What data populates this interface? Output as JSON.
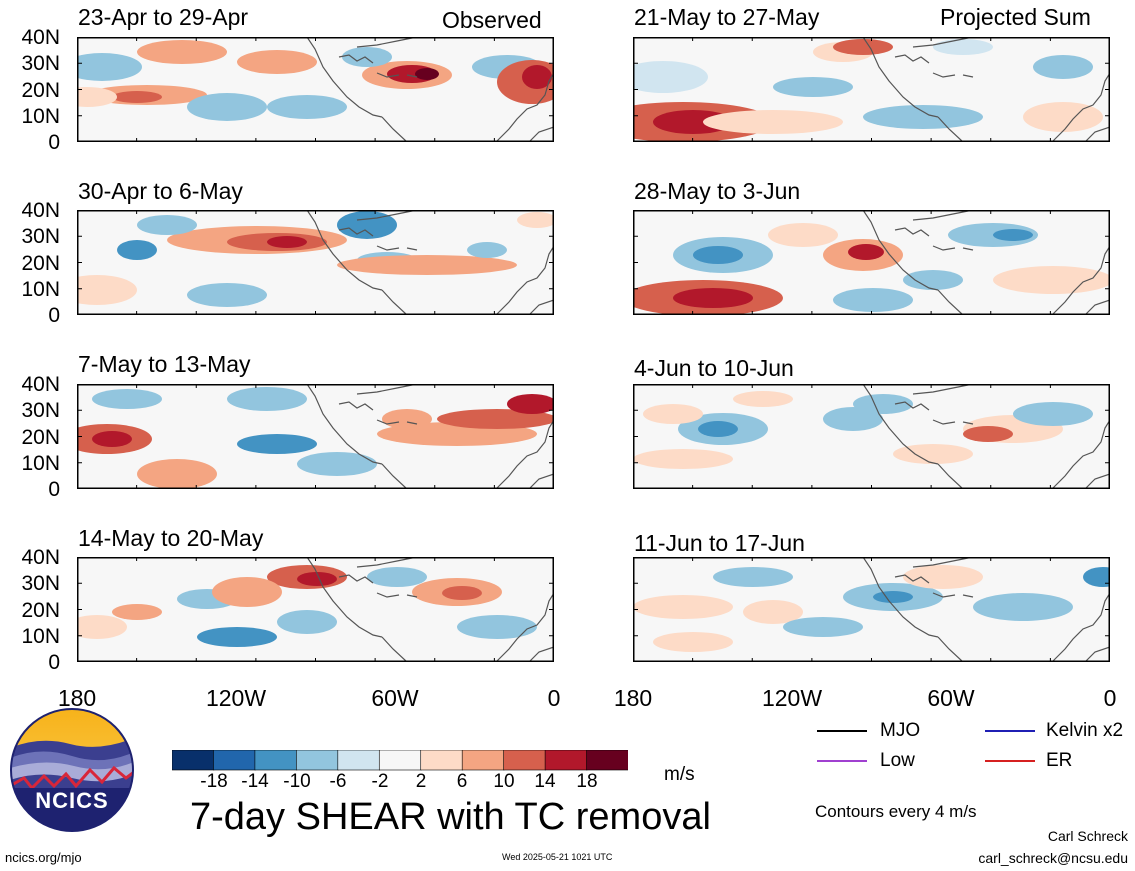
{
  "header": {
    "observed_label": "Observed",
    "projected_label": "Projected Sum"
  },
  "panels": [
    {
      "title": "23-Apr to 29-Apr",
      "column": "observed"
    },
    {
      "title": "30-Apr to 6-May",
      "column": "observed"
    },
    {
      "title": "7-May to 13-May",
      "column": "observed"
    },
    {
      "title": "14-May to 20-May",
      "column": "observed"
    },
    {
      "title": "21-May to 27-May",
      "column": "projected"
    },
    {
      "title": "28-May to 3-Jun",
      "column": "projected"
    },
    {
      "title": "4-Jun to 10-Jun",
      "column": "projected"
    },
    {
      "title": "11-Jun to 17-Jun",
      "column": "projected"
    }
  ],
  "axes": {
    "lat_labels": [
      "40N",
      "30N",
      "20N",
      "10N",
      "0"
    ],
    "lon_labels": [
      "180",
      "120W",
      "60W",
      "0"
    ]
  },
  "colorbar": {
    "labels": [
      "-18",
      "-14",
      "-10",
      "-6",
      "-2",
      "2",
      "6",
      "10",
      "14",
      "18"
    ],
    "colors": [
      "#08306b",
      "#2166ac",
      "#4393c3",
      "#92c5de",
      "#d1e5f0",
      "#f7f7f7",
      "#fddbc7",
      "#f4a582",
      "#d6604d",
      "#b2182b",
      "#67001f"
    ],
    "unit": "m/s"
  },
  "legend": {
    "items": [
      {
        "label": "MJO",
        "color": "#000000"
      },
      {
        "label": "Kelvin x2",
        "color": "#1f1fb4"
      },
      {
        "label": "Low",
        "color": "#a040d0"
      },
      {
        "label": "ER",
        "color": "#d62020"
      }
    ],
    "contour_note": "Contours every 4 m/s"
  },
  "title": "7-day SHEAR with TC removal",
  "footer": {
    "website": "ncics.org/mjo",
    "timestamp": "Wed 2025-05-21 1021 UTC",
    "author": "Carl Schreck",
    "email": "carl_schreck@ncsu.edu",
    "logo_text": "NCICS"
  },
  "colors": {
    "coast": "#555555",
    "frame": "#000000"
  }
}
